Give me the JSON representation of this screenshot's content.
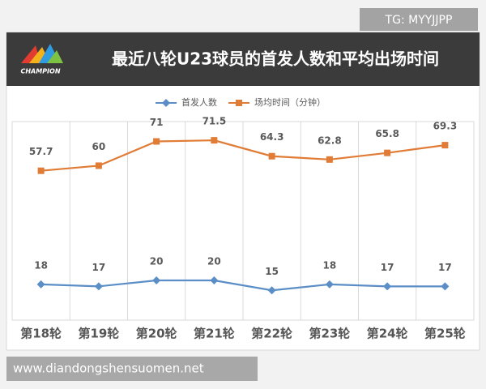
{
  "watermark_top": "TG: MYYJJPP",
  "watermark_bottom": "www.diandongshensuomen.net",
  "logo_text": "CHAMPION",
  "chart_data": {
    "type": "line",
    "title": "最近八轮U23球员的首发人数和平均出场时间",
    "categories": [
      "第18轮",
      "第19轮",
      "第20轮",
      "第21轮",
      "第22轮",
      "第23轮",
      "第24轮",
      "第25轮"
    ],
    "series": [
      {
        "name": "首发人数",
        "color": "#5b8ec6",
        "marker": "diamond",
        "values": [
          18,
          17,
          20,
          20,
          15,
          18,
          17,
          17
        ]
      },
      {
        "name": "场均时间（分钟）",
        "color": "#e07c36",
        "marker": "square",
        "axis": "y2",
        "values": [
          57.7,
          60,
          71,
          71.5,
          64.3,
          62.8,
          65.8,
          69.3
        ]
      }
    ],
    "ylim": [
      0,
      100
    ],
    "y2lim": [
      -10,
      80
    ],
    "legend": "top"
  }
}
